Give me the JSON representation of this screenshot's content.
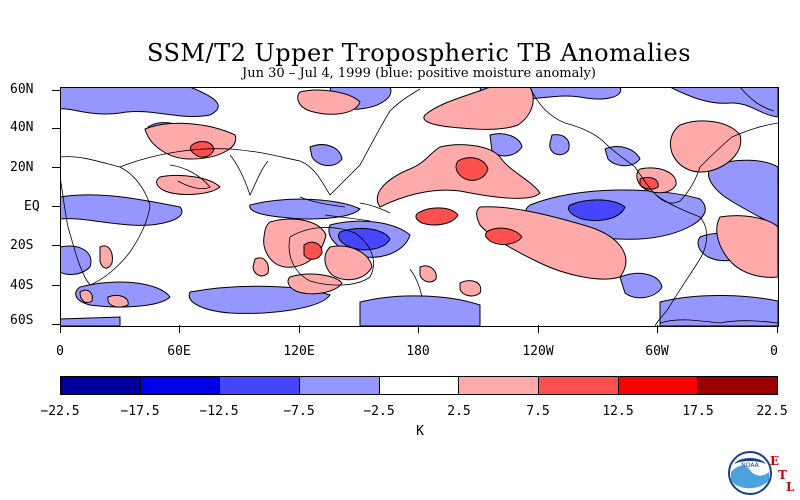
{
  "header": {
    "title": "SSM/T2 Upper Tropospheric TB Anomalies",
    "subtitle": "Jun 30 – Jul 4, 1999 (blue: positive moisture anomaly)"
  },
  "map": {
    "lat_labels": [
      "60N",
      "40N",
      "20N",
      "EQ",
      "20S",
      "40S",
      "60S"
    ],
    "lon_labels": [
      "0",
      "60E",
      "120E",
      "180",
      "120W",
      "60W",
      "0"
    ],
    "lon_range_deg_east": [
      0,
      360
    ],
    "lat_range_deg": [
      -60,
      60
    ]
  },
  "colorbar": {
    "labels": [
      "−22.5",
      "−17.5",
      "−12.5",
      "−7.5",
      "−2.5",
      "2.5",
      "7.5",
      "12.5",
      "17.5",
      "22.5"
    ],
    "colors": [
      "#00009b",
      "#0000e6",
      "#4646ff",
      "#9696ff",
      "#ffffff",
      "#ffaaaa",
      "#ff5050",
      "#ff0000",
      "#9b0000"
    ],
    "unit": "K"
  },
  "logo": {
    "agency_text": "NOAA",
    "lab_letters": [
      "E",
      "T",
      "L"
    ]
  }
}
